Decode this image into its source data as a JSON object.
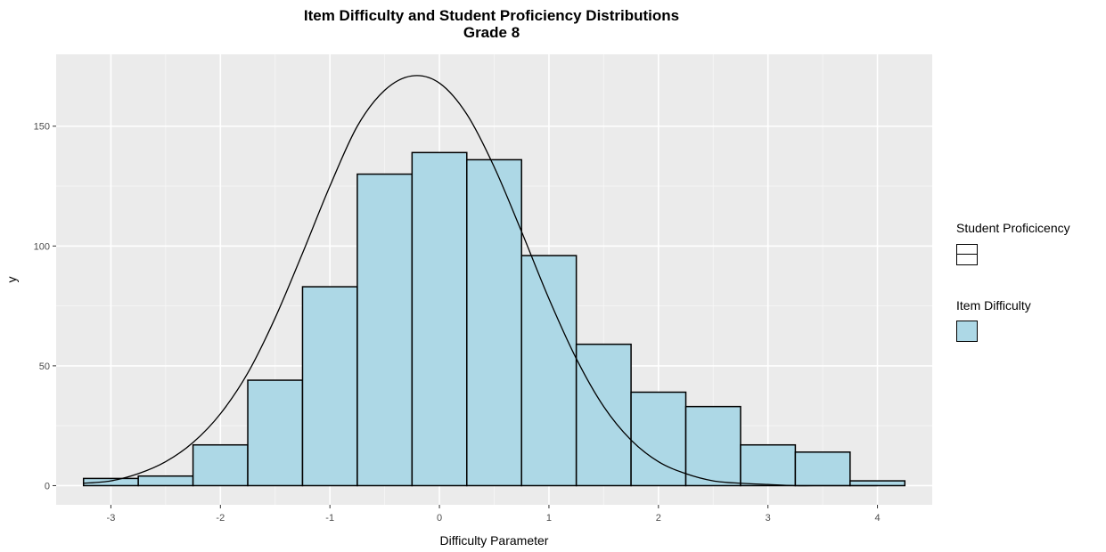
{
  "chart_data": {
    "type": "bar",
    "title": "Item Difficulty and Student Proficiency Distributions",
    "subtitle": "Grade 8",
    "xlabel": "Difficulty Parameter",
    "ylabel": "y",
    "xlim": [
      -3.5,
      4.5
    ],
    "ylim": [
      -8,
      180
    ],
    "x_ticks": [
      -3,
      -2,
      -1,
      0,
      1,
      2,
      3,
      4
    ],
    "y_ticks": [
      0,
      50,
      100,
      150
    ],
    "grid": true,
    "bin_width": 0.5,
    "histogram": {
      "name": "Item Difficulty",
      "fill": "#add8e6",
      "stroke": "#000000",
      "bin_centers": [
        -3.0,
        -2.5,
        -2.0,
        -1.5,
        -1.0,
        -0.5,
        0.0,
        0.5,
        1.0,
        1.5,
        2.0,
        2.5,
        3.0,
        3.5,
        4.0
      ],
      "counts": [
        3,
        4,
        17,
        44,
        83,
        130,
        139,
        136,
        96,
        59,
        39,
        33,
        17,
        14,
        2
      ]
    },
    "curve": {
      "name": "Student Proficicency",
      "stroke": "#000000",
      "x": [
        -3.25,
        -3.0,
        -2.75,
        -2.5,
        -2.25,
        -2.0,
        -1.75,
        -1.5,
        -1.25,
        -1.0,
        -0.75,
        -0.5,
        -0.25,
        0.0,
        0.25,
        0.5,
        0.75,
        1.0,
        1.25,
        1.5,
        1.75,
        2.0,
        2.25,
        2.5,
        2.75,
        3.0,
        3.25,
        3.5,
        3.75,
        4.0
      ],
      "y": [
        1,
        2,
        5,
        10,
        18,
        30,
        47,
        70,
        97,
        125,
        150,
        165,
        171,
        168,
        155,
        133,
        106,
        78,
        53,
        33,
        19,
        10,
        5,
        2,
        1,
        0.5,
        0,
        0,
        0,
        0
      ]
    },
    "legend": {
      "position": "right",
      "entries": [
        {
          "title": "Student Proficicency",
          "kind": "line"
        },
        {
          "title": "Item Difficulty",
          "kind": "fill"
        }
      ]
    },
    "colors": {
      "panel": "#ebebeb",
      "grid_major": "#ffffff",
      "bar_fill": "#add8e6",
      "axis_text": "#4d4d4d"
    }
  }
}
